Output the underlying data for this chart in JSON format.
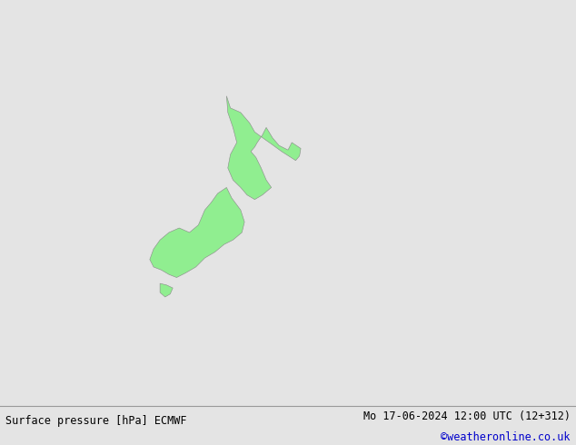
{
  "title_left": "Surface pressure [hPa] ECMWF",
  "title_right": "Mo 17-06-2024 12:00 UTC (12+312)",
  "credit": "©weatheronline.co.uk",
  "bg_color": "#e4e4e4",
  "land_color": "#90ee90",
  "land_edge": "#888888",
  "label_fontsize": 6.5,
  "title_fontsize": 8.5,
  "credit_color": "#0000cc",
  "lon_min": 155,
  "lon_max": 200,
  "lat_min": -55,
  "lat_max": -28
}
